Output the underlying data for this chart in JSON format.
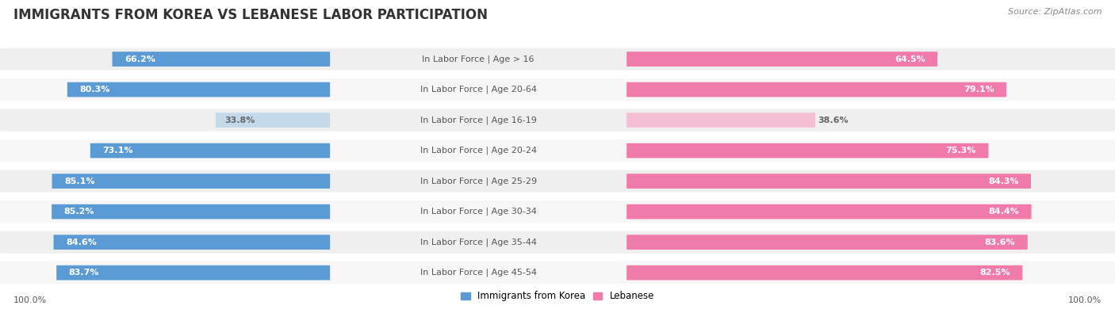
{
  "title": "IMMIGRANTS FROM KOREA VS LEBANESE LABOR PARTICIPATION",
  "source": "Source: ZipAtlas.com",
  "categories": [
    "In Labor Force | Age > 16",
    "In Labor Force | Age 20-64",
    "In Labor Force | Age 16-19",
    "In Labor Force | Age 20-24",
    "In Labor Force | Age 25-29",
    "In Labor Force | Age 30-34",
    "In Labor Force | Age 35-44",
    "In Labor Force | Age 45-54"
  ],
  "korea_values": [
    66.2,
    80.3,
    33.8,
    73.1,
    85.1,
    85.2,
    84.6,
    83.7
  ],
  "lebanese_values": [
    64.5,
    79.1,
    38.6,
    75.3,
    84.3,
    84.4,
    83.6,
    82.5
  ],
  "korea_color": "#5B9BD5",
  "korea_color_light": "#C5D9ED",
  "lebanese_color": "#F07BAA",
  "lebanese_color_light": "#F5C0D5",
  "background_color": "#FFFFFF",
  "row_bg_even": "#EFEFEF",
  "row_bg_odd": "#F7F7F7",
  "title_fontsize": 12,
  "label_fontsize": 8,
  "value_fontsize": 8,
  "legend_fontsize": 8.5,
  "footer_fontsize": 8,
  "title_color": "#333333",
  "source_color": "#888888",
  "label_color": "#555555",
  "value_color_white": "#FFFFFF",
  "value_color_dark": "#666666"
}
